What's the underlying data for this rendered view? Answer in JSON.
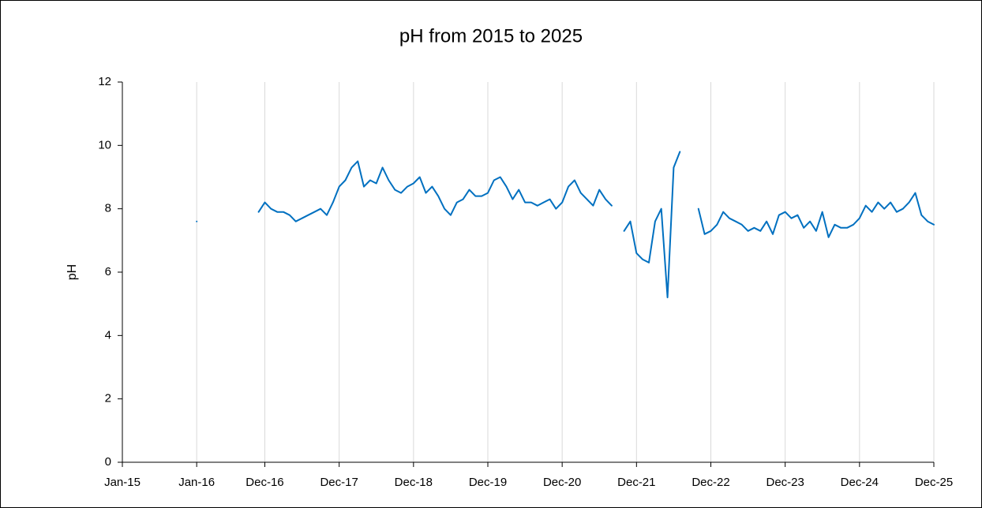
{
  "chart_data": {
    "type": "line",
    "title": "pH from 2015 to 2025",
    "ylabel": "pH",
    "xlim": [
      "2015-01",
      "2025-12"
    ],
    "xticks": [
      {
        "value": "2015-01",
        "label": "Jan-15"
      },
      {
        "value": "2016-01",
        "label": "Jan-16"
      },
      {
        "value": "2016-12",
        "label": "Dec-16"
      },
      {
        "value": "2017-12",
        "label": "Dec-17"
      },
      {
        "value": "2018-12",
        "label": "Dec-18"
      },
      {
        "value": "2019-12",
        "label": "Dec-19"
      },
      {
        "value": "2020-12",
        "label": "Dec-20"
      },
      {
        "value": "2021-12",
        "label": "Dec-21"
      },
      {
        "value": "2022-12",
        "label": "Dec-22"
      },
      {
        "value": "2023-12",
        "label": "Dec-23"
      },
      {
        "value": "2024-12",
        "label": "Dec-24"
      },
      {
        "value": "2025-12",
        "label": "Dec-25"
      }
    ],
    "ylim": [
      0,
      12
    ],
    "yticks": [
      0,
      2,
      4,
      6,
      8,
      10,
      12
    ],
    "xgrid": true,
    "ygrid": false,
    "x": [
      "2016-01",
      "2016-02",
      "2016-03",
      "2016-04",
      "2016-05",
      "2016-06",
      "2016-07",
      "2016-08",
      "2016-09",
      "2016-10",
      "2016-11",
      "2016-12",
      "2017-01",
      "2017-02",
      "2017-03",
      "2017-04",
      "2017-05",
      "2017-06",
      "2017-07",
      "2017-08",
      "2017-09",
      "2017-10",
      "2017-11",
      "2017-12",
      "2018-01",
      "2018-02",
      "2018-03",
      "2018-04",
      "2018-05",
      "2018-06",
      "2018-07",
      "2018-08",
      "2018-09",
      "2018-10",
      "2018-11",
      "2018-12",
      "2019-01",
      "2019-02",
      "2019-03",
      "2019-04",
      "2019-05",
      "2019-06",
      "2019-07",
      "2019-08",
      "2019-09",
      "2019-10",
      "2019-11",
      "2019-12",
      "2020-01",
      "2020-02",
      "2020-03",
      "2020-04",
      "2020-05",
      "2020-06",
      "2020-07",
      "2020-08",
      "2020-09",
      "2020-10",
      "2020-11",
      "2020-12",
      "2021-01",
      "2021-02",
      "2021-03",
      "2021-04",
      "2021-05",
      "2021-06",
      "2021-07",
      "2021-08",
      "2021-09",
      "2021-10",
      "2021-11",
      "2021-12",
      "2022-01",
      "2022-02",
      "2022-03",
      "2022-04",
      "2022-05",
      "2022-06",
      "2022-07",
      "2022-08",
      "2022-09",
      "2022-10",
      "2022-11",
      "2022-12",
      "2023-01",
      "2023-02",
      "2023-03",
      "2023-04",
      "2023-05",
      "2023-06",
      "2023-07",
      "2023-08",
      "2023-09",
      "2023-10",
      "2023-11",
      "2023-12",
      "2024-01",
      "2024-02",
      "2024-03",
      "2024-04",
      "2024-05",
      "2024-06",
      "2024-07",
      "2024-08",
      "2024-09",
      "2024-10",
      "2024-11",
      "2024-12",
      "2025-01",
      "2025-02",
      "2025-03",
      "2025-04",
      "2025-05",
      "2025-06",
      "2025-07",
      "2025-08",
      "2025-09",
      "2025-10",
      "2025-11",
      "2025-12"
    ],
    "series": [
      {
        "name": "pH",
        "color": "#0070c0",
        "values": [
          7.6,
          null,
          null,
          null,
          null,
          null,
          null,
          null,
          null,
          null,
          7.9,
          8.2,
          8.0,
          7.9,
          7.9,
          7.8,
          7.6,
          7.7,
          7.8,
          7.9,
          8.0,
          7.8,
          8.2,
          8.7,
          8.9,
          9.3,
          9.5,
          8.7,
          8.9,
          8.8,
          9.3,
          8.9,
          8.6,
          8.5,
          8.7,
          8.8,
          9.0,
          8.5,
          8.7,
          8.4,
          8.0,
          7.8,
          8.2,
          8.3,
          8.6,
          8.4,
          8.4,
          8.5,
          8.9,
          9.0,
          8.7,
          8.3,
          8.6,
          8.2,
          8.2,
          8.1,
          8.2,
          8.3,
          8.0,
          8.2,
          8.7,
          8.9,
          8.5,
          8.3,
          8.1,
          8.6,
          8.3,
          8.1,
          null,
          7.3,
          7.6,
          6.6,
          6.4,
          6.3,
          7.6,
          8.0,
          5.2,
          9.3,
          9.8,
          null,
          null,
          8.0,
          7.2,
          7.3,
          7.5,
          7.9,
          7.7,
          7.6,
          7.5,
          7.3,
          7.4,
          7.3,
          7.6,
          7.2,
          7.8,
          7.9,
          7.7,
          7.8,
          7.4,
          7.6,
          7.3,
          7.9,
          7.1,
          7.5,
          7.4,
          7.4,
          7.5,
          7.7,
          8.1,
          7.9,
          8.2,
          8.0,
          8.2,
          7.9,
          8.0,
          8.2,
          8.5,
          7.8,
          7.6,
          7.5
        ]
      }
    ]
  }
}
